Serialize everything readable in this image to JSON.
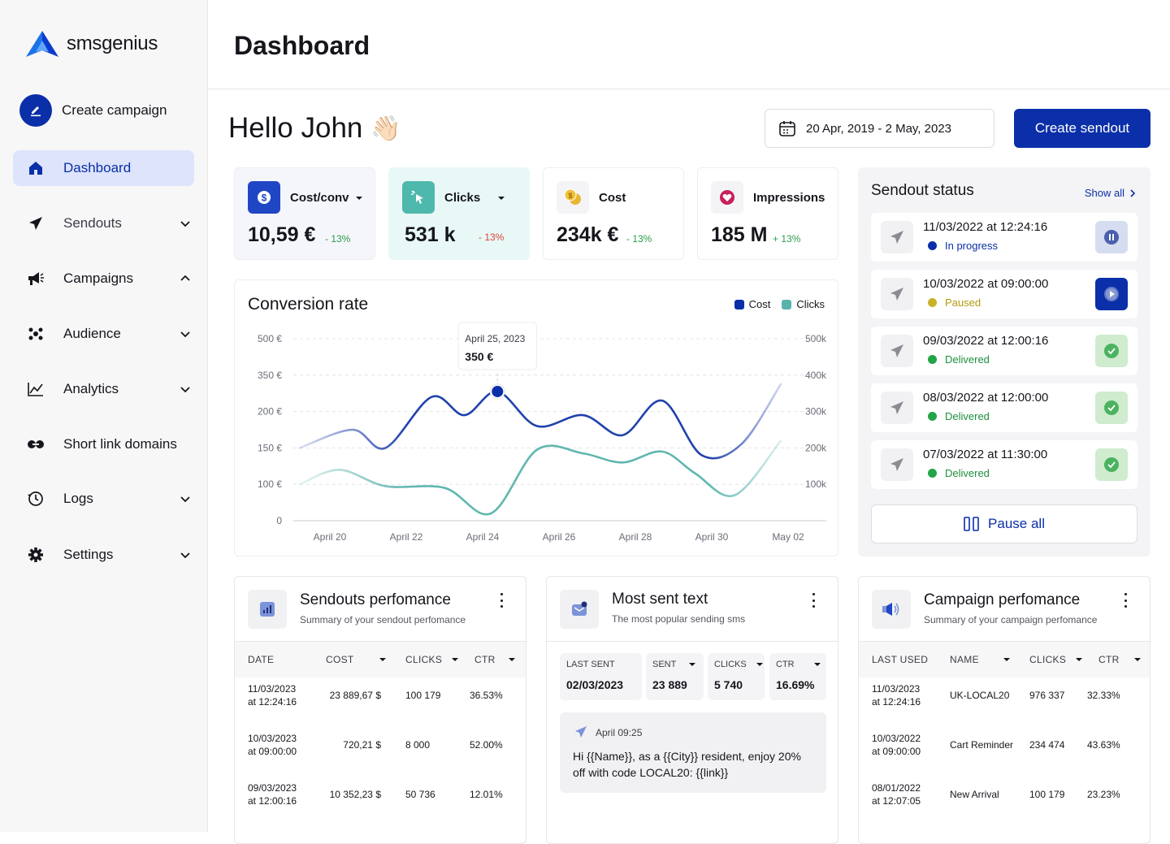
{
  "brand": {
    "name": "smsgenius"
  },
  "sidebar": {
    "create_campaign": "Create campaign",
    "items": [
      {
        "label": "Dashboard",
        "icon": "home-icon",
        "active": true
      },
      {
        "label": "Sendouts",
        "icon": "send-icon"
      },
      {
        "label": "Campaigns",
        "icon": "megaphone-icon"
      },
      {
        "label": "Audience",
        "icon": "audience-icon"
      },
      {
        "label": "Analytics",
        "icon": "analytics-icon"
      },
      {
        "label": "Short link domains",
        "icon": "link-icon"
      },
      {
        "label": "Logs",
        "icon": "history-icon"
      },
      {
        "label": "Settings",
        "icon": "gear-icon"
      }
    ]
  },
  "header": {
    "title": "Dashboard"
  },
  "greeting": {
    "text": "Hello John",
    "emoji": "👋🏻"
  },
  "date_range": "20 Apr, 2019 - 2 May, 2023",
  "create_sendout": "Create sendout",
  "kpis": [
    {
      "label": "Cost/conv",
      "value": "10,59 €",
      "delta": "- 13%",
      "delta_color": "#2a9d4b"
    },
    {
      "label": "Clicks",
      "value": "531 k",
      "delta": "- 13%",
      "delta_color": "#e0413c"
    },
    {
      "label": "Cost",
      "value": "234k €",
      "delta": "- 13%",
      "delta_color": "#2a9d4b"
    },
    {
      "label": "Impressions",
      "value": "185 M",
      "delta": "+ 13%",
      "delta_color": "#2a9d4b"
    }
  ],
  "chart_data": {
    "type": "line",
    "title": "Conversion rate",
    "legend": [
      "Cost",
      "Clicks"
    ],
    "y_left_ticks": [
      "0",
      "100 €",
      "150 €",
      "200 €",
      "350 €",
      "500 €"
    ],
    "y_right_ticks": [
      "100k",
      "200k",
      "300k",
      "400k",
      "500k"
    ],
    "x_ticks": [
      "April 20",
      "April 22",
      "April 24",
      "April 26",
      "April 28",
      "April 30",
      "May 02"
    ],
    "tooltip": {
      "date": "April 25, 2023",
      "value": "350 €"
    },
    "series": [
      {
        "name": "Cost",
        "color": "#1538a8",
        "x": [
          0,
          0.8,
          1.3,
          2.0,
          2.5,
          3.0,
          3.6,
          4.3,
          4.9,
          5.5,
          6.1,
          6.7,
          7.3
        ],
        "y": [
          2.0,
          2.5,
          2.0,
          3.4,
          2.9,
          3.55,
          2.6,
          2.9,
          2.35,
          3.3,
          1.8,
          2.1,
          3.75
        ]
      },
      {
        "name": "Clicks",
        "color": "#58b3ac",
        "x": [
          0,
          0.6,
          1.3,
          2.2,
          2.9,
          3.6,
          4.3,
          4.9,
          5.5,
          6.0,
          6.6,
          7.3
        ],
        "y": [
          1.0,
          1.4,
          0.95,
          0.9,
          0.2,
          1.95,
          1.85,
          1.6,
          1.9,
          1.3,
          0.7,
          2.2
        ]
      }
    ],
    "grid": true
  },
  "sendout_status": {
    "title": "Sendout status",
    "show_all": "Show all",
    "items": [
      {
        "time": "11/03/2022 at 12:24:16",
        "status": "In progress",
        "dot": "#0a2fa8",
        "text_color": "#0a2fa8",
        "action": "pause"
      },
      {
        "time": "10/03/2022 at 09:00:00",
        "status": "Paused",
        "dot": "#c9b12a",
        "text_color": "#b39a10",
        "action": "play"
      },
      {
        "time": "09/03/2022 at 12:00:16",
        "status": "Delivered",
        "dot": "#22a447",
        "text_color": "#1e8f3e",
        "action": "check"
      },
      {
        "time": "08/03/2022 at 12:00:00",
        "status": "Delivered",
        "dot": "#22a447",
        "text_color": "#1e8f3e",
        "action": "check"
      },
      {
        "time": "07/03/2022 at 11:30:00",
        "status": "Delivered",
        "dot": "#22a447",
        "text_color": "#1e8f3e",
        "action": "check"
      }
    ],
    "pause_all": "Pause all"
  },
  "sendouts_perf": {
    "title": "Sendouts perfomance",
    "subtitle": "Summary of your sendout perfomance",
    "columns": [
      "DATE",
      "COST",
      "CLICKS",
      "CTR"
    ],
    "rows": [
      {
        "date1": "11/03/2023",
        "date2": "at 12:24:16",
        "cost": "23 889,67 $",
        "clicks": "100 179",
        "ctr": "36.53%"
      },
      {
        "date1": "10/03/2023",
        "date2": "at 09:00:00",
        "cost": "720,21 $",
        "clicks": "8 000",
        "ctr": "52.00%"
      },
      {
        "date1": "09/03/2023",
        "date2": "at 12:00:16",
        "cost": "10 352,23 $",
        "clicks": "50 736",
        "ctr": "12.01%"
      }
    ]
  },
  "most_sent": {
    "title": "Most sent text",
    "subtitle": "The most popular sending sms",
    "stats": [
      {
        "label": "LAST SENT",
        "value": "02/03/2023"
      },
      {
        "label": "SENT",
        "value": "23 889"
      },
      {
        "label": "CLICKS",
        "value": "5 740"
      },
      {
        "label": "CTR",
        "value": "16.69%"
      }
    ],
    "message_time": "April 09:25",
    "message": "Hi {{Name}}, as a {{City}} resident, enjoy 20% off with code LOCAL20: {{link}}"
  },
  "campaign_perf": {
    "title": "Campaign perfomance",
    "subtitle": "Summary of your campaign perfomance",
    "columns": [
      "LAST USED",
      "NAME",
      "CLICKS",
      "CTR"
    ],
    "rows": [
      {
        "date1": "11/03/2023",
        "date2": "at 12:24:16",
        "name": "UK-LOCAL20",
        "clicks": "976 337",
        "ctr": "32.33%"
      },
      {
        "date1": "10/03/2022",
        "date2": "at 09:00:00",
        "name": "Cart Reminder",
        "clicks": "234 474",
        "ctr": "43.63%"
      },
      {
        "date1": "08/01/2022",
        "date2": "at 12:07:05",
        "name": "New Arrival",
        "clicks": "100 179",
        "ctr": "23.23%"
      }
    ]
  }
}
